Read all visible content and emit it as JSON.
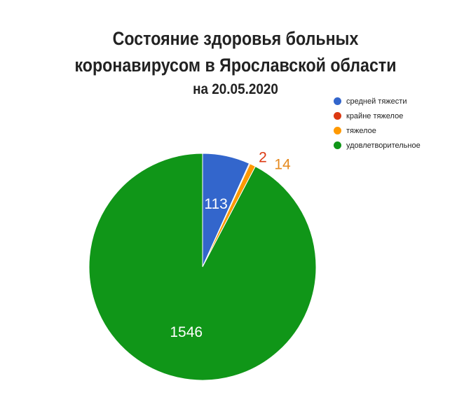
{
  "chart_data": {
    "type": "pie",
    "title": "Состояние здоровья больных коронавирусом в Ярославской области на 20.05.2020",
    "title_lines": [
      "Состояние здоровья больных",
      "коронавирусом в Ярославской области",
      "на 20.05.2020"
    ],
    "legend_position": "top-right",
    "slices": [
      {
        "name": "средней тяжести",
        "value": 113,
        "label": "113",
        "color": "#3366cc",
        "label_color": "#ffffff"
      },
      {
        "name": "крайне тяжелое",
        "value": 2,
        "label": "2",
        "color": "#dc3912",
        "label_color": "#dc3912"
      },
      {
        "name": "тяжелое",
        "value": 14,
        "label": "14",
        "color": "#ff9900",
        "label_color": "#e58a1f"
      },
      {
        "name": "удовлетворительное",
        "value": 1546,
        "label": "1546",
        "color": "#109618",
        "label_color": "#ffffff"
      }
    ]
  }
}
